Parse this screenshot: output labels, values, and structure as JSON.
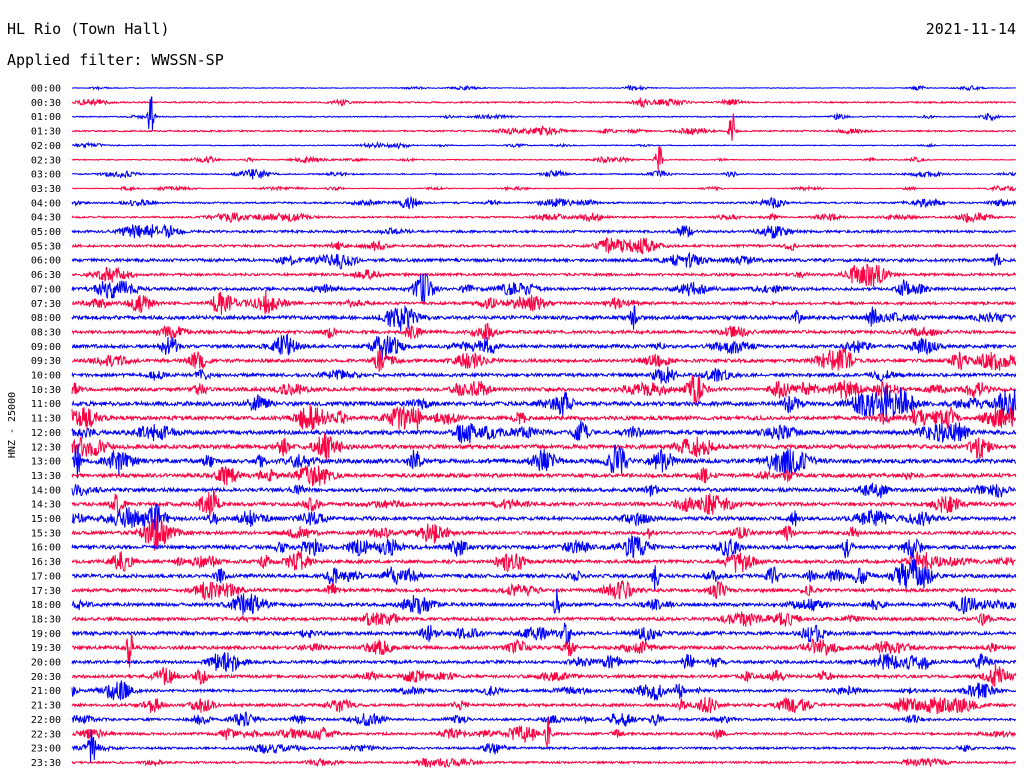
{
  "header": {
    "station": "HL Rio (Town Hall)",
    "date": "2021-11-14",
    "filter": "Applied filter: WWSSN-SP"
  },
  "chart_data": {
    "type": "line",
    "ylabel": "HNZ - 25000",
    "row_labels": [
      "00:00",
      "00:30",
      "01:00",
      "01:30",
      "02:00",
      "02:30",
      "03:00",
      "03:30",
      "04:00",
      "04:30",
      "05:00",
      "05:30",
      "06:00",
      "06:30",
      "07:00",
      "07:30",
      "08:00",
      "08:30",
      "09:00",
      "09:30",
      "10:00",
      "10:30",
      "11:00",
      "11:30",
      "12:00",
      "12:30",
      "13:00",
      "13:30",
      "14:00",
      "14:30",
      "15:00",
      "15:30",
      "16:00",
      "16:30",
      "17:00",
      "17:30",
      "18:00",
      "18:30",
      "19:00",
      "19:30",
      "20:00",
      "20:30",
      "21:00",
      "21:30",
      "22:00",
      "22:30",
      "23:00",
      "23:30"
    ],
    "colors": [
      "#0000ff",
      "#ff0040"
    ],
    "noise_level": [
      0.8,
      1.6,
      1.2,
      1.6,
      1.0,
      1.0,
      1.3,
      0.7,
      1.8,
      1.8,
      2.6,
      2.6,
      3.4,
      2.8,
      3.2,
      3.0,
      4.0,
      3.4,
      3.6,
      3.6,
      3.6,
      3.8,
      4.6,
      4.2,
      4.6,
      4.4,
      4.6,
      4.0,
      4.0,
      4.0,
      3.8,
      3.6,
      4.0,
      3.6,
      3.8,
      3.6,
      3.6,
      3.4,
      3.8,
      3.6,
      3.4,
      3.2,
      2.8,
      3.0,
      2.6,
      2.6,
      2.4,
      2.2
    ]
  }
}
